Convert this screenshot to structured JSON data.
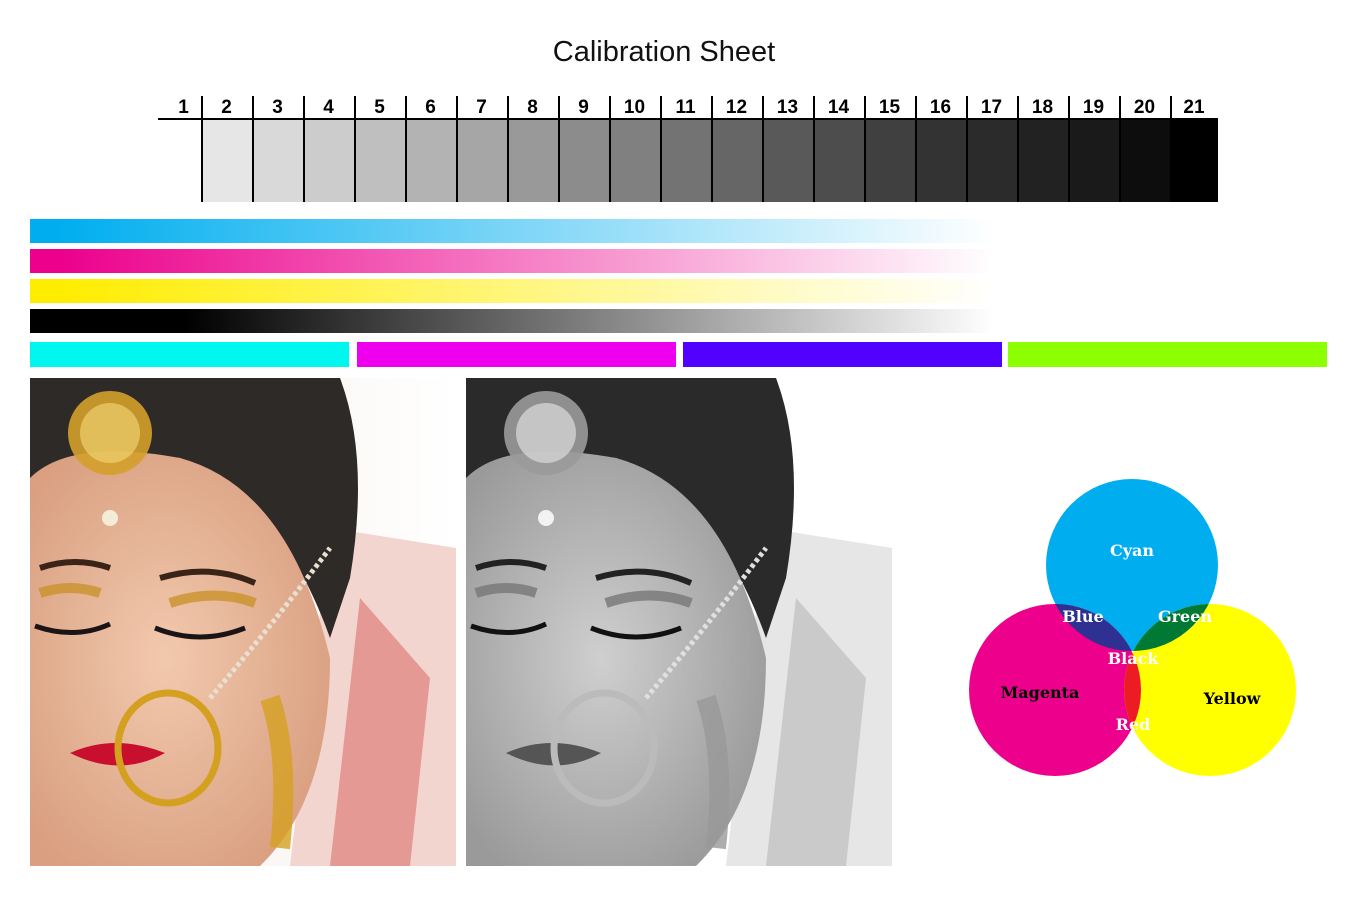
{
  "title": "Calibration Sheet",
  "grayscale_steps": [
    {
      "label": "1",
      "color": "#ffffff"
    },
    {
      "label": "2",
      "color": "#e6e6e6"
    },
    {
      "label": "3",
      "color": "#d9d9d9"
    },
    {
      "label": "4",
      "color": "#cccccc"
    },
    {
      "label": "5",
      "color": "#bfbfbf"
    },
    {
      "label": "6",
      "color": "#b3b3b3"
    },
    {
      "label": "7",
      "color": "#a6a6a6"
    },
    {
      "label": "8",
      "color": "#999999"
    },
    {
      "label": "9",
      "color": "#8c8c8c"
    },
    {
      "label": "10",
      "color": "#808080"
    },
    {
      "label": "11",
      "color": "#737373"
    },
    {
      "label": "12",
      "color": "#666666"
    },
    {
      "label": "13",
      "color": "#595959"
    },
    {
      "label": "14",
      "color": "#4d4d4d"
    },
    {
      "label": "15",
      "color": "#404040"
    },
    {
      "label": "16",
      "color": "#333333"
    },
    {
      "label": "17",
      "color": "#2b2b2b"
    },
    {
      "label": "18",
      "color": "#222222"
    },
    {
      "label": "19",
      "color": "#1a1a1a"
    },
    {
      "label": "20",
      "color": "#0d0d0d"
    },
    {
      "label": "21",
      "color": "#000000"
    }
  ],
  "gradients": [
    {
      "name": "cyan",
      "color": "#00aeef"
    },
    {
      "name": "magenta",
      "color": "#ec008c"
    },
    {
      "name": "yellow",
      "color": "#ffed00"
    },
    {
      "name": "black",
      "color": "#000000"
    }
  ],
  "solid_bars": [
    {
      "name": "cyan",
      "color": "#00f7f0"
    },
    {
      "name": "magenta",
      "color": "#ee00ee"
    },
    {
      "name": "violet",
      "color": "#5200ff"
    },
    {
      "name": "green",
      "color": "#8cff00"
    }
  ],
  "photos": [
    {
      "name": "color-portrait"
    },
    {
      "name": "grayscale-portrait"
    }
  ],
  "venn": {
    "circles": [
      {
        "label": "Cyan",
        "color": "#00aeef"
      },
      {
        "label": "Magenta",
        "color": "#ec008c"
      },
      {
        "label": "Yellow",
        "color": "#ffff00"
      }
    ],
    "overlaps": [
      {
        "label": "Blue",
        "color": "#2e3192"
      },
      {
        "label": "Green",
        "color": "#007934"
      },
      {
        "label": "Red",
        "color": "#ed1c24"
      },
      {
        "label": "Black",
        "color": "#000000"
      }
    ]
  }
}
